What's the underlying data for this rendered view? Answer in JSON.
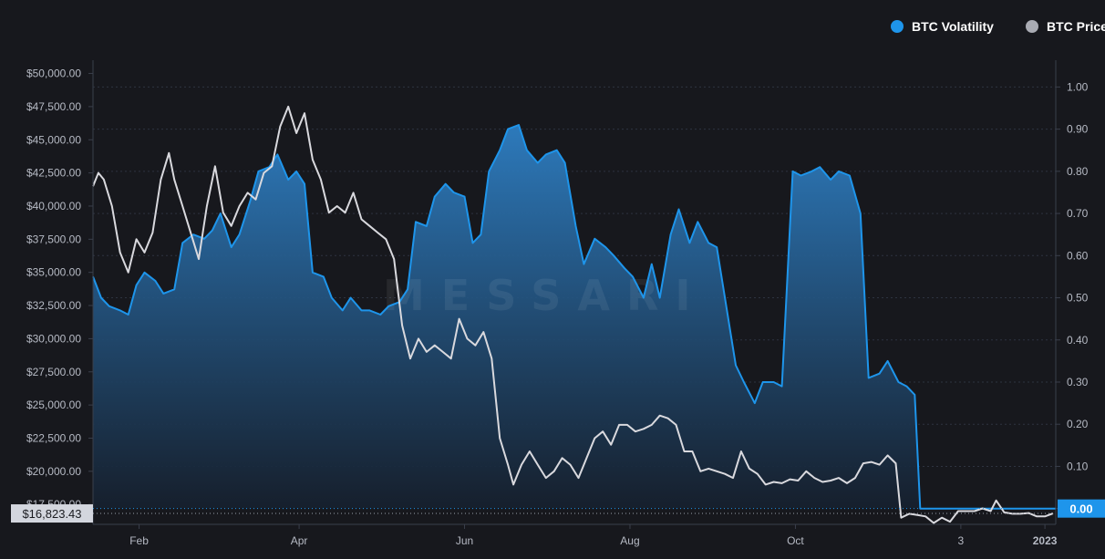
{
  "legend": {
    "volatility_label": "BTC Volatility",
    "price_label": "BTC Price"
  },
  "watermark": "MESSARI",
  "colors": {
    "background": "#17181d",
    "volatility": "#1e95eb",
    "price": "#d9d9de",
    "legend_price_dot": "#a9abb3",
    "grid": "#2e3340",
    "axis_text": "#b6bac4",
    "badge_bg": "#d3d6de"
  },
  "chart_data": {
    "type": "line",
    "title": "",
    "left_axis": {
      "min": 16000,
      "max": 51000,
      "ticks": [
        17500,
        20000,
        22500,
        25000,
        27500,
        30000,
        32500,
        35000,
        37500,
        40000,
        42500,
        45000,
        47500,
        50000
      ],
      "tick_labels": [
        "$17,500.00",
        "$20,000.00",
        "$22,500.00",
        "$25,000.00",
        "$27,500.00",
        "$30,000.00",
        "$32,500.00",
        "$35,000.00",
        "$37,500.00",
        "$40,000.00",
        "$42,500.00",
        "$45,000.00",
        "$47,500.00",
        "$50,000.00"
      ]
    },
    "right_axis": {
      "min": -0.0375,
      "max": 1.0636,
      "ticks": [
        0.0,
        0.1,
        0.2,
        0.3,
        0.4,
        0.5,
        0.6,
        0.7,
        0.8,
        0.9,
        1.0
      ],
      "tick_labels": [
        "0.00",
        "0.10",
        "0.20",
        "0.30",
        "0.40",
        "0.50",
        "0.60",
        "0.70",
        "0.80",
        "0.90",
        "1.00"
      ]
    },
    "x_axis": {
      "start": "2022-01-15",
      "end": "2023-01-05",
      "ticks": [
        "2022-02-01",
        "2022-04-01",
        "2022-06-01",
        "2022-08-01",
        "2022-10-01",
        "2022-12-01",
        "2023-01-01"
      ],
      "tick_labels": [
        "Feb",
        "Apr",
        "Jun",
        "Aug",
        "Oct",
        "3",
        "2023"
      ]
    },
    "last_price_label": "$16,823.43",
    "last_volatility_label": "0.00",
    "series": [
      {
        "name": "BTC Volatility",
        "axis": "right",
        "points": [
          [
            "2022-01-15",
            0.55
          ],
          [
            "2022-01-18",
            0.5
          ],
          [
            "2022-01-21",
            0.48
          ],
          [
            "2022-01-25",
            0.47
          ],
          [
            "2022-01-28",
            0.46
          ],
          [
            "2022-01-31",
            0.53
          ],
          [
            "2022-02-03",
            0.56
          ],
          [
            "2022-02-07",
            0.54
          ],
          [
            "2022-02-10",
            0.51
          ],
          [
            "2022-02-14",
            0.52
          ],
          [
            "2022-02-17",
            0.63
          ],
          [
            "2022-02-21",
            0.65
          ],
          [
            "2022-02-25",
            0.64
          ],
          [
            "2022-02-28",
            0.66
          ],
          [
            "2022-03-03",
            0.7
          ],
          [
            "2022-03-07",
            0.62
          ],
          [
            "2022-03-10",
            0.65
          ],
          [
            "2022-03-14",
            0.73
          ],
          [
            "2022-03-17",
            0.8
          ],
          [
            "2022-03-21",
            0.81
          ],
          [
            "2022-03-24",
            0.84
          ],
          [
            "2022-03-28",
            0.78
          ],
          [
            "2022-03-31",
            0.8
          ],
          [
            "2022-04-03",
            0.77
          ],
          [
            "2022-04-06",
            0.56
          ],
          [
            "2022-04-10",
            0.55
          ],
          [
            "2022-04-13",
            0.5
          ],
          [
            "2022-04-17",
            0.47
          ],
          [
            "2022-04-20",
            0.5
          ],
          [
            "2022-04-24",
            0.47
          ],
          [
            "2022-04-27",
            0.47
          ],
          [
            "2022-05-01",
            0.46
          ],
          [
            "2022-05-04",
            0.48
          ],
          [
            "2022-05-08",
            0.49
          ],
          [
            "2022-05-11",
            0.52
          ],
          [
            "2022-05-14",
            0.68
          ],
          [
            "2022-05-18",
            0.67
          ],
          [
            "2022-05-21",
            0.74
          ],
          [
            "2022-05-25",
            0.77
          ],
          [
            "2022-05-28",
            0.75
          ],
          [
            "2022-06-01",
            0.74
          ],
          [
            "2022-06-04",
            0.63
          ],
          [
            "2022-06-07",
            0.65
          ],
          [
            "2022-06-10",
            0.8
          ],
          [
            "2022-06-14",
            0.85
          ],
          [
            "2022-06-17",
            0.9
          ],
          [
            "2022-06-21",
            0.91
          ],
          [
            "2022-06-24",
            0.85
          ],
          [
            "2022-06-28",
            0.82
          ],
          [
            "2022-07-01",
            0.84
          ],
          [
            "2022-07-05",
            0.85
          ],
          [
            "2022-07-08",
            0.82
          ],
          [
            "2022-07-12",
            0.67
          ],
          [
            "2022-07-15",
            0.58
          ],
          [
            "2022-07-19",
            0.64
          ],
          [
            "2022-07-23",
            0.62
          ],
          [
            "2022-07-26",
            0.6
          ],
          [
            "2022-07-30",
            0.57
          ],
          [
            "2022-08-02",
            0.55
          ],
          [
            "2022-08-06",
            0.5
          ],
          [
            "2022-08-09",
            0.58
          ],
          [
            "2022-08-12",
            0.5
          ],
          [
            "2022-08-16",
            0.65
          ],
          [
            "2022-08-19",
            0.71
          ],
          [
            "2022-08-23",
            0.63
          ],
          [
            "2022-08-26",
            0.68
          ],
          [
            "2022-08-30",
            0.63
          ],
          [
            "2022-09-02",
            0.62
          ],
          [
            "2022-09-05",
            0.5
          ],
          [
            "2022-09-09",
            0.34
          ],
          [
            "2022-09-12",
            0.3
          ],
          [
            "2022-09-16",
            0.25
          ],
          [
            "2022-09-19",
            0.3
          ],
          [
            "2022-09-23",
            0.3
          ],
          [
            "2022-09-26",
            0.29
          ],
          [
            "2022-09-30",
            0.8
          ],
          [
            "2022-10-03",
            0.79
          ],
          [
            "2022-10-07",
            0.8
          ],
          [
            "2022-10-10",
            0.81
          ],
          [
            "2022-10-14",
            0.78
          ],
          [
            "2022-10-17",
            0.8
          ],
          [
            "2022-10-21",
            0.79
          ],
          [
            "2022-10-25",
            0.7
          ],
          [
            "2022-10-28",
            0.31
          ],
          [
            "2022-11-01",
            0.32
          ],
          [
            "2022-11-04",
            0.35
          ],
          [
            "2022-11-08",
            0.3
          ],
          [
            "2022-11-11",
            0.29
          ],
          [
            "2022-11-14",
            0.27
          ],
          [
            "2022-11-16",
            0.0
          ],
          [
            "2022-11-18",
            0.0
          ]
        ]
      },
      {
        "name": "BTC Price",
        "axis": "left",
        "points": [
          [
            "2022-01-15",
            41500
          ],
          [
            "2022-01-17",
            42500
          ],
          [
            "2022-01-19",
            42000
          ],
          [
            "2022-01-22",
            40000
          ],
          [
            "2022-01-25",
            36500
          ],
          [
            "2022-01-28",
            35000
          ],
          [
            "2022-01-31",
            37500
          ],
          [
            "2022-02-03",
            36500
          ],
          [
            "2022-02-06",
            38000
          ],
          [
            "2022-02-09",
            42000
          ],
          [
            "2022-02-12",
            44000
          ],
          [
            "2022-02-14",
            42000
          ],
          [
            "2022-02-17",
            40000
          ],
          [
            "2022-02-20",
            38000
          ],
          [
            "2022-02-23",
            36000
          ],
          [
            "2022-02-26",
            40000
          ],
          [
            "2022-03-01",
            43000
          ],
          [
            "2022-03-04",
            39500
          ],
          [
            "2022-03-07",
            38500
          ],
          [
            "2022-03-10",
            40000
          ],
          [
            "2022-03-13",
            41000
          ],
          [
            "2022-03-16",
            40500
          ],
          [
            "2022-03-19",
            42500
          ],
          [
            "2022-03-22",
            43000
          ],
          [
            "2022-03-25",
            46000
          ],
          [
            "2022-03-28",
            47500
          ],
          [
            "2022-03-31",
            45500
          ],
          [
            "2022-04-03",
            47000
          ],
          [
            "2022-04-06",
            43500
          ],
          [
            "2022-04-09",
            42000
          ],
          [
            "2022-04-12",
            39500
          ],
          [
            "2022-04-15",
            40000
          ],
          [
            "2022-04-18",
            39500
          ],
          [
            "2022-04-21",
            41000
          ],
          [
            "2022-04-24",
            39000
          ],
          [
            "2022-04-27",
            38500
          ],
          [
            "2022-04-30",
            38000
          ],
          [
            "2022-05-03",
            37500
          ],
          [
            "2022-05-06",
            36000
          ],
          [
            "2022-05-09",
            31000
          ],
          [
            "2022-05-12",
            28500
          ],
          [
            "2022-05-15",
            30000
          ],
          [
            "2022-05-18",
            29000
          ],
          [
            "2022-05-21",
            29500
          ],
          [
            "2022-05-24",
            29000
          ],
          [
            "2022-05-27",
            28500
          ],
          [
            "2022-05-30",
            31500
          ],
          [
            "2022-06-02",
            30000
          ],
          [
            "2022-06-05",
            29500
          ],
          [
            "2022-06-08",
            30500
          ],
          [
            "2022-06-11",
            28500
          ],
          [
            "2022-06-14",
            22500
          ],
          [
            "2022-06-17",
            20500
          ],
          [
            "2022-06-19",
            19000
          ],
          [
            "2022-06-22",
            20500
          ],
          [
            "2022-06-25",
            21500
          ],
          [
            "2022-06-28",
            20500
          ],
          [
            "2022-07-01",
            19500
          ],
          [
            "2022-07-04",
            20000
          ],
          [
            "2022-07-07",
            21000
          ],
          [
            "2022-07-10",
            20500
          ],
          [
            "2022-07-13",
            19500
          ],
          [
            "2022-07-16",
            21000
          ],
          [
            "2022-07-19",
            22500
          ],
          [
            "2022-07-22",
            23000
          ],
          [
            "2022-07-25",
            22000
          ],
          [
            "2022-07-28",
            23500
          ],
          [
            "2022-07-31",
            23500
          ],
          [
            "2022-08-03",
            23000
          ],
          [
            "2022-08-06",
            23200
          ],
          [
            "2022-08-09",
            23500
          ],
          [
            "2022-08-12",
            24200
          ],
          [
            "2022-08-15",
            24000
          ],
          [
            "2022-08-18",
            23500
          ],
          [
            "2022-08-21",
            21500
          ],
          [
            "2022-08-24",
            21500
          ],
          [
            "2022-08-27",
            20000
          ],
          [
            "2022-08-30",
            20200
          ],
          [
            "2022-09-02",
            20000
          ],
          [
            "2022-09-05",
            19800
          ],
          [
            "2022-09-08",
            19500
          ],
          [
            "2022-09-11",
            21500
          ],
          [
            "2022-09-14",
            20200
          ],
          [
            "2022-09-17",
            19800
          ],
          [
            "2022-09-20",
            19000
          ],
          [
            "2022-09-23",
            19200
          ],
          [
            "2022-09-26",
            19100
          ],
          [
            "2022-09-29",
            19400
          ],
          [
            "2022-10-02",
            19300
          ],
          [
            "2022-10-05",
            20000
          ],
          [
            "2022-10-08",
            19500
          ],
          [
            "2022-10-11",
            19200
          ],
          [
            "2022-10-14",
            19300
          ],
          [
            "2022-10-17",
            19500
          ],
          [
            "2022-10-20",
            19100
          ],
          [
            "2022-10-23",
            19500
          ],
          [
            "2022-10-26",
            20600
          ],
          [
            "2022-10-29",
            20700
          ],
          [
            "2022-11-01",
            20500
          ],
          [
            "2022-11-04",
            21200
          ],
          [
            "2022-11-07",
            20600
          ],
          [
            "2022-11-09",
            16500
          ],
          [
            "2022-11-12",
            16800
          ],
          [
            "2022-11-15",
            16700
          ],
          [
            "2022-11-18",
            16600
          ],
          [
            "2022-11-21",
            16100
          ],
          [
            "2022-11-24",
            16500
          ],
          [
            "2022-11-27",
            16200
          ],
          [
            "2022-11-30",
            17000
          ],
          [
            "2022-12-03",
            17000
          ],
          [
            "2022-12-06",
            17000
          ],
          [
            "2022-12-09",
            17200
          ],
          [
            "2022-12-12",
            17000
          ],
          [
            "2022-12-14",
            17800
          ],
          [
            "2022-12-17",
            16900
          ],
          [
            "2022-12-20",
            16800
          ],
          [
            "2022-12-23",
            16800
          ],
          [
            "2022-12-26",
            16850
          ],
          [
            "2022-12-29",
            16600
          ],
          [
            "2023-01-01",
            16600
          ],
          [
            "2023-01-04",
            16823
          ]
        ]
      }
    ]
  }
}
